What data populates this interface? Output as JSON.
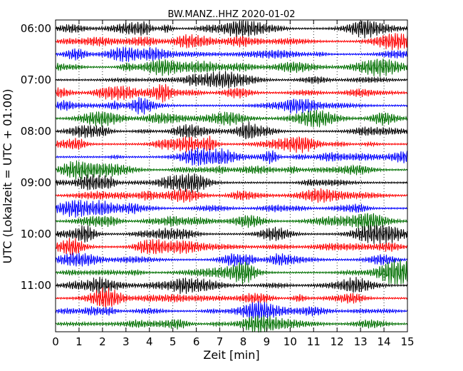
{
  "chart_data": {
    "type": "line",
    "title": "BW.MANZ..HHZ 2020-01-02",
    "xlabel": "Zeit  [min]",
    "ylabel": "UTC (Lokalzeit = UTC + 01:00)",
    "xlim": [
      0,
      15
    ],
    "x_ticks": [
      0,
      1,
      2,
      3,
      4,
      5,
      6,
      7,
      8,
      9,
      10,
      11,
      12,
      13,
      14,
      15
    ],
    "y_tick_labels": [
      "06:00",
      "07:00",
      "08:00",
      "09:00",
      "10:00",
      "11:00"
    ],
    "trace_minutes": 15,
    "trace_count": 24,
    "trace_colors": [
      "#000000",
      "#ff0000",
      "#0000ff",
      "#007000"
    ],
    "grid": "vertical dotted lines at each minute",
    "legend": "none"
  }
}
